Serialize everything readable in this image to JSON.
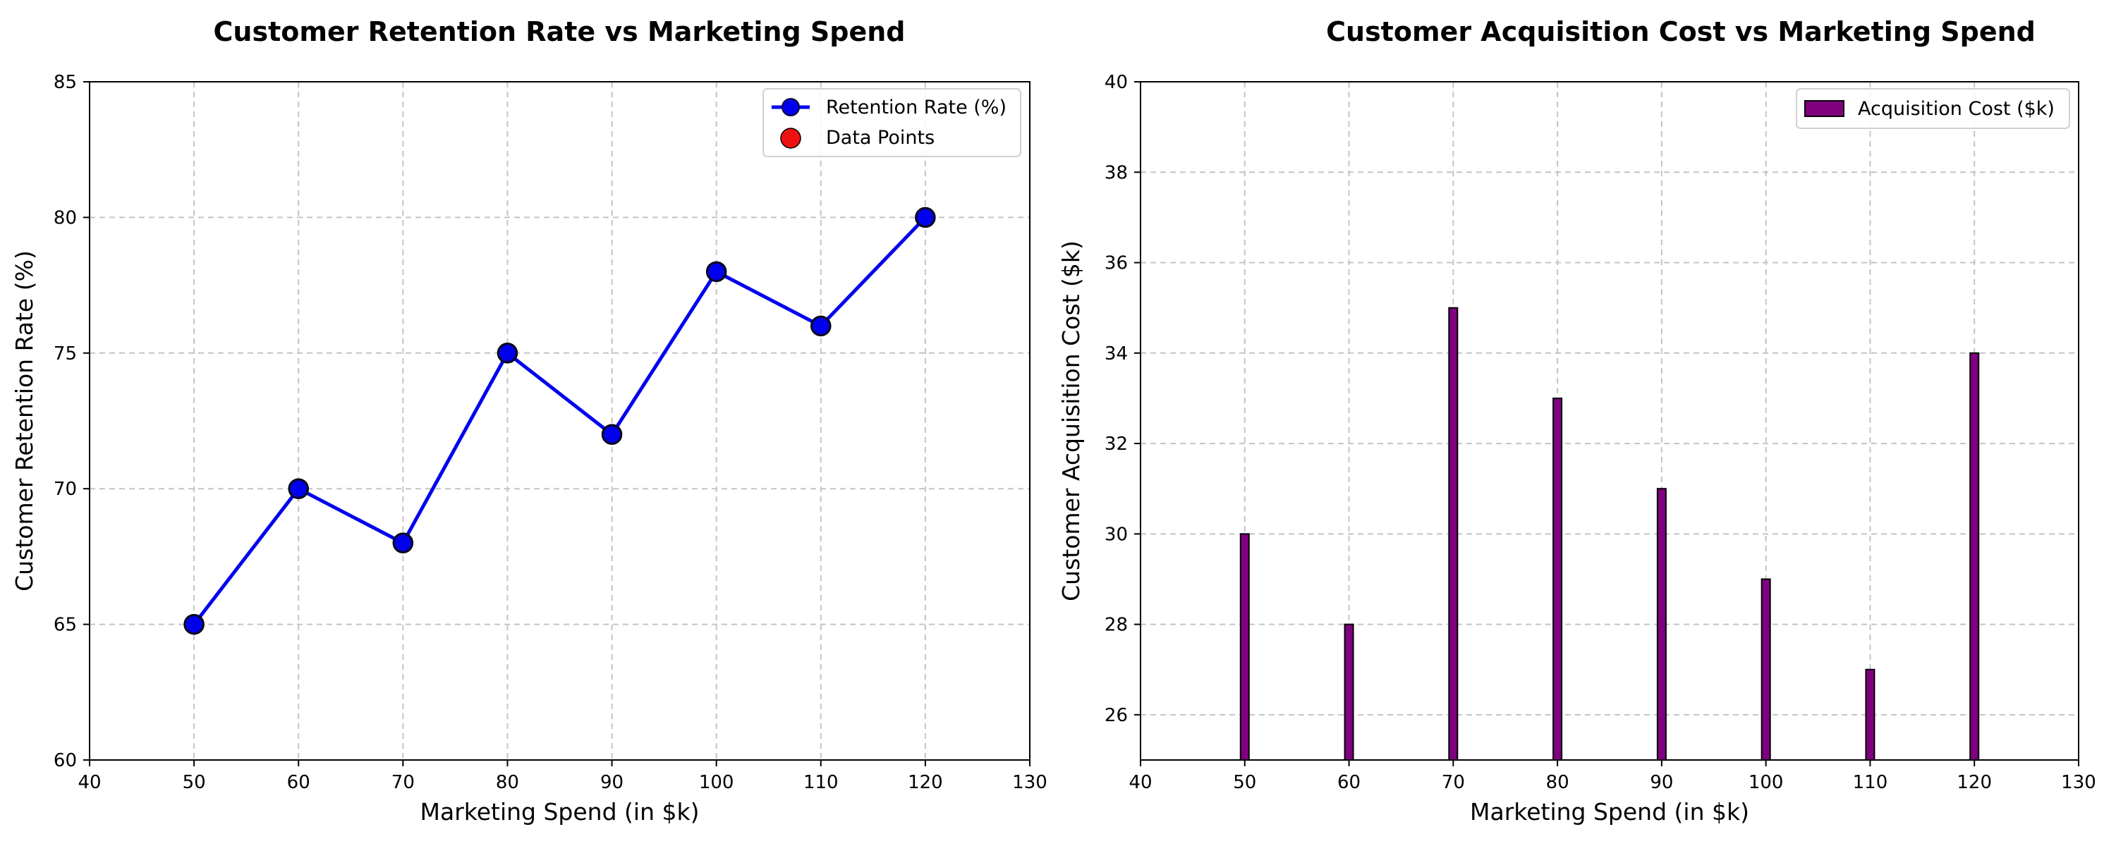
{
  "chart_data": [
    {
      "type": "line",
      "title": "Customer Retention Rate vs Marketing Spend",
      "xlabel": "Marketing Spend (in $k)",
      "ylabel": "Customer Retention Rate (%)",
      "x": [
        50,
        60,
        70,
        80,
        90,
        100,
        110,
        120
      ],
      "xlim": [
        40,
        130
      ],
      "ylim": [
        60,
        85
      ],
      "xticks": [
        40,
        50,
        60,
        70,
        80,
        90,
        100,
        110,
        120,
        130
      ],
      "yticks": [
        60,
        65,
        70,
        75,
        80,
        85
      ],
      "grid": true,
      "legend_position": "top-right",
      "series": [
        {
          "name": "Retention Rate (%)",
          "values": [
            65,
            70,
            68,
            75,
            72,
            78,
            76,
            80
          ],
          "color": "#0000ee",
          "marker": "circle"
        },
        {
          "name": "Data Points",
          "values": [
            65,
            70,
            68,
            75,
            72,
            78,
            76,
            80
          ],
          "color": "#ee1111",
          "marker": "circle"
        }
      ]
    },
    {
      "type": "bar",
      "title": "Customer Acquisition Cost vs Marketing Spend",
      "xlabel": "Marketing Spend (in $k)",
      "ylabel": "Customer Acquisition Cost ($k)",
      "x": [
        50,
        60,
        70,
        80,
        90,
        100,
        110,
        120
      ],
      "xlim": [
        40,
        130
      ],
      "ylim": [
        25,
        40
      ],
      "xticks": [
        40,
        50,
        60,
        70,
        80,
        90,
        100,
        110,
        120,
        130
      ],
      "yticks": [
        26,
        28,
        30,
        32,
        34,
        36,
        38,
        40
      ],
      "grid": true,
      "legend_position": "top-right",
      "series": [
        {
          "name": "Acquisition Cost ($k)",
          "values": [
            30,
            28,
            35,
            33,
            31,
            29,
            27,
            34
          ],
          "color": "#800080"
        }
      ]
    }
  ]
}
